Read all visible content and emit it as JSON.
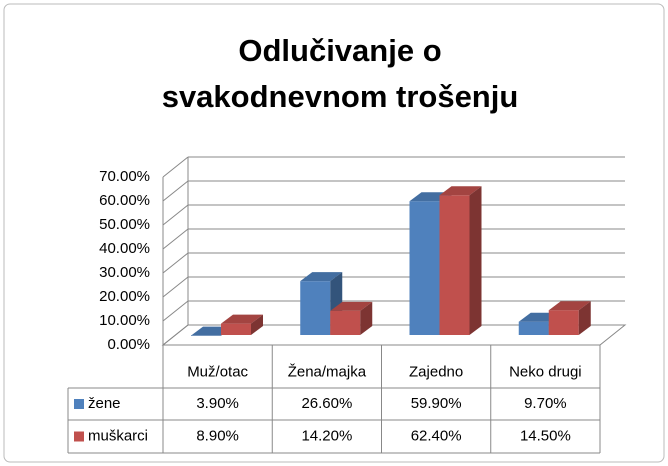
{
  "chart_data": {
    "type": "bar3d",
    "title": "Odlučivanje o svakodnevnom trošenju",
    "categories": [
      "Muž/otac",
      "Žena/majka",
      "Zajedno",
      "Neko drugi"
    ],
    "series": [
      {
        "name": "žene",
        "color": "#4f81bd",
        "values": [
          3.9,
          26.6,
          59.9,
          9.7
        ],
        "value_labels": [
          "3.90%",
          "26.60%",
          "59.90%",
          "9.70%"
        ]
      },
      {
        "name": "muškarci",
        "color": "#c0504d",
        "values": [
          8.9,
          14.2,
          62.4,
          14.5
        ],
        "value_labels": [
          "8.90%",
          "14.20%",
          "62.40%",
          "14.50%"
        ]
      }
    ],
    "ylim": [
      0,
      70
    ],
    "yticks": [
      {
        "value": 0,
        "label": "0.00%"
      },
      {
        "value": 10,
        "label": "10.00%"
      },
      {
        "value": 20,
        "label": "20.00%"
      },
      {
        "value": 30,
        "label": "30.00%"
      },
      {
        "value": 40,
        "label": "40.00%"
      },
      {
        "value": 50,
        "label": "50.00%"
      },
      {
        "value": 60,
        "label": "60.00%"
      },
      {
        "value": 70,
        "label": "70.00%"
      }
    ],
    "grid": true,
    "data_table": true
  }
}
